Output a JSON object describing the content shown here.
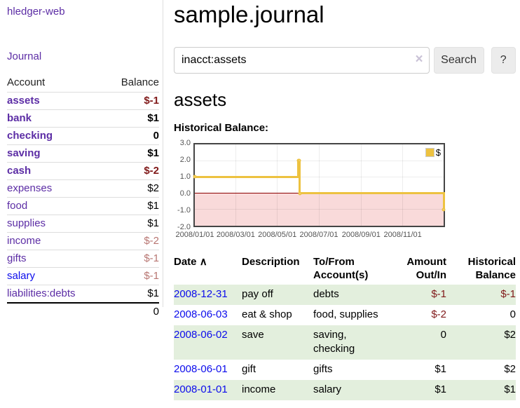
{
  "brand": "hledger-web",
  "nav": {
    "journal": "Journal"
  },
  "sidebar": {
    "col_account": "Account",
    "col_balance": "Balance",
    "rows": [
      {
        "account": "assets",
        "balance": "$-1"
      },
      {
        "account": "bank",
        "balance": "$1"
      },
      {
        "account": "checking",
        "balance": "0"
      },
      {
        "account": "saving",
        "balance": "$1"
      },
      {
        "account": "cash",
        "balance": "$-2"
      },
      {
        "account": "expenses",
        "balance": "$2"
      },
      {
        "account": "food",
        "balance": "$1"
      },
      {
        "account": "supplies",
        "balance": "$1"
      },
      {
        "account": "income",
        "balance": "$-2"
      },
      {
        "account": "gifts",
        "balance": "$-1"
      },
      {
        "account": "salary",
        "balance": "$-1"
      },
      {
        "account": "liabilities:debts",
        "balance": "$1"
      }
    ],
    "total": "0"
  },
  "main": {
    "title": "sample.journal",
    "search": {
      "value": "inacct:assets",
      "clear_icon": "×",
      "search_button": "Search",
      "help_button": "?"
    },
    "account_heading": "assets",
    "chart_caption": "Historical Balance:"
  },
  "chart_data": {
    "type": "line",
    "step": true,
    "title": "Historical Balance",
    "legend": "$",
    "legend_position": "top-right",
    "series": [
      {
        "name": "$",
        "color": "#edc240",
        "points": [
          [
            "2008-01-01",
            1.0
          ],
          [
            "2008-06-01",
            2.0
          ],
          [
            "2008-06-02",
            2.0
          ],
          [
            "2008-06-03",
            0.0
          ],
          [
            "2008-12-31",
            -1.0
          ]
        ]
      }
    ],
    "x_range": [
      "2008-01-01",
      "2008-12-31"
    ],
    "x_ticks": [
      "2008/01/01",
      "2008/03/01",
      "2008/05/01",
      "2008/07/01",
      "2008/09/01",
      "2008/11/01"
    ],
    "y_ticks": [
      "3.0",
      "2.0",
      "1.0",
      "0.0",
      "-1.0",
      "-2.0"
    ],
    "ylim": [
      -2,
      3
    ],
    "grid": true,
    "negative_region_fill": "#f9dada",
    "zero_line_color": "#8b0000"
  },
  "register": {
    "headers": {
      "date": "Date",
      "sort_icon": "∧",
      "description": "Description",
      "accounts": "To/From Account(s)",
      "amount": "Amount Out/In",
      "balance": "Historical Balance"
    },
    "rows": [
      {
        "date": "2008-12-31",
        "description": "pay off",
        "accounts": "debts",
        "amount": "$-1",
        "balance": "$-1"
      },
      {
        "date": "2008-06-03",
        "description": "eat & shop",
        "accounts": "food, supplies",
        "amount": "$-2",
        "balance": "0"
      },
      {
        "date": "2008-06-02",
        "description": "save",
        "accounts": "saving, checking",
        "amount": "0",
        "balance": "$2"
      },
      {
        "date": "2008-06-01",
        "description": "gift",
        "accounts": "gifts",
        "amount": "$1",
        "balance": "$2"
      },
      {
        "date": "2008-01-01",
        "description": "income",
        "accounts": "salary",
        "amount": "$1",
        "balance": "$1"
      }
    ]
  }
}
